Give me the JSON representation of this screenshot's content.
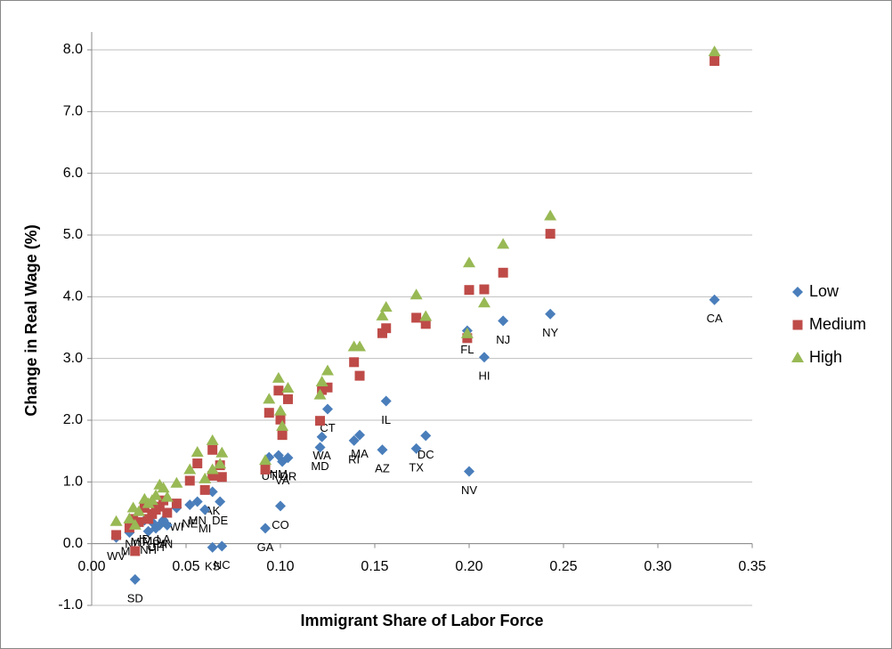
{
  "chart_data": {
    "type": "scatter",
    "x_label": "Immigrant Share of Labor Force",
    "y_label": "Change in Real Wage (%)",
    "xlim": [
      0,
      0.35
    ],
    "ylim": [
      -1,
      8
    ],
    "xticks": [
      {
        "value": 0,
        "label": "0.00"
      },
      {
        "value": 0.05,
        "label": "0.05"
      },
      {
        "value": 0.1,
        "label": "0.10"
      },
      {
        "value": 0.15,
        "label": "0.15"
      },
      {
        "value": 0.2,
        "label": "0.20"
      },
      {
        "value": 0.25,
        "label": "0.25"
      },
      {
        "value": 0.3,
        "label": "0.30"
      },
      {
        "value": 0.35,
        "label": "0.35"
      }
    ],
    "yticks": [
      {
        "value": -1,
        "label": "-1.0"
      },
      {
        "value": 0,
        "label": "0.0"
      },
      {
        "value": 1,
        "label": "1.0"
      },
      {
        "value": 2,
        "label": "2.0"
      },
      {
        "value": 3,
        "label": "3.0"
      },
      {
        "value": 4,
        "label": "4.0"
      },
      {
        "value": 5,
        "label": "5.0"
      },
      {
        "value": 6,
        "label": "6.0"
      },
      {
        "value": 7,
        "label": "7.0"
      },
      {
        "value": 8,
        "label": "8.0"
      }
    ],
    "grid": true,
    "legend_position": "right",
    "x": [
      0.33,
      0.243,
      0.218,
      0.208,
      0.199,
      0.2,
      0.177,
      0.172,
      0.154,
      0.156,
      0.142,
      0.139,
      0.122,
      0.121,
      0.125,
      0.104,
      0.101,
      0.094,
      0.099,
      0.1,
      0.092,
      0.064,
      0.069,
      0.064,
      0.068,
      0.056,
      0.052,
      0.06,
      0.045,
      0.04,
      0.036,
      0.034,
      0.032,
      0.03,
      0.028,
      0.022,
      0.02,
      0.013,
      0.023,
      0.025,
      0.038
    ],
    "series": [
      {
        "name": "Low",
        "color": "#4a7ebb",
        "marker": "diamond",
        "values": [
          3.95,
          3.72,
          3.61,
          3.02,
          3.45,
          1.17,
          1.75,
          1.54,
          1.52,
          2.31,
          1.76,
          1.67,
          1.73,
          1.56,
          2.18,
          1.39,
          1.33,
          1.4,
          1.43,
          0.61,
          0.25,
          -0.06,
          -0.04,
          0.84,
          0.68,
          0.68,
          0.63,
          0.55,
          0.58,
          0.3,
          0.3,
          0.25,
          0.35,
          0.2,
          0.38,
          0.3,
          0.18,
          0.1,
          -0.58,
          0.33,
          0.38
        ],
        "point_labels": [
          "CA",
          "NY",
          "NJ",
          "HI",
          "FL",
          "NV",
          "DC",
          "TX",
          "AZ",
          "IL",
          "MA",
          "RI",
          "WA",
          "MD",
          "CT",
          "OR",
          "VA",
          "UT",
          "NM",
          "CO",
          "GA",
          "KS",
          "NC",
          "AK",
          "DE",
          "MN",
          "NE",
          "MI",
          "WI",
          "IN",
          "PA",
          "OH",
          "MO",
          "NH",
          "ID",
          "ND",
          "MS",
          "WV",
          "SD",
          "MT",
          "LA"
        ]
      },
      {
        "name": "Medium",
        "color": "#be4b48",
        "marker": "square",
        "values": [
          7.82,
          5.02,
          4.39,
          4.12,
          3.33,
          4.11,
          3.56,
          3.66,
          3.41,
          3.49,
          2.72,
          2.94,
          2.49,
          1.99,
          2.53,
          2.34,
          1.76,
          2.12,
          2.48,
          2.01,
          1.2,
          1.52,
          1.08,
          1.1,
          1.27,
          1.3,
          1.02,
          0.87,
          0.65,
          0.5,
          0.6,
          0.55,
          0.48,
          0.4,
          0.58,
          0.4,
          0.26,
          0.14,
          -0.12,
          0.35,
          0.7
        ]
      },
      {
        "name": "High",
        "color": "#98b954",
        "marker": "triangle",
        "values": [
          7.97,
          5.31,
          4.85,
          3.9,
          3.4,
          4.55,
          3.68,
          4.03,
          3.69,
          3.83,
          3.19,
          3.19,
          2.62,
          2.41,
          2.8,
          2.52,
          1.9,
          2.34,
          2.68,
          2.15,
          1.35,
          1.67,
          1.47,
          1.2,
          1.29,
          1.48,
          1.2,
          1.05,
          0.98,
          0.75,
          0.95,
          0.78,
          0.7,
          0.65,
          0.72,
          0.58,
          0.4,
          0.36,
          0.3,
          0.52,
          0.9
        ]
      }
    ]
  }
}
